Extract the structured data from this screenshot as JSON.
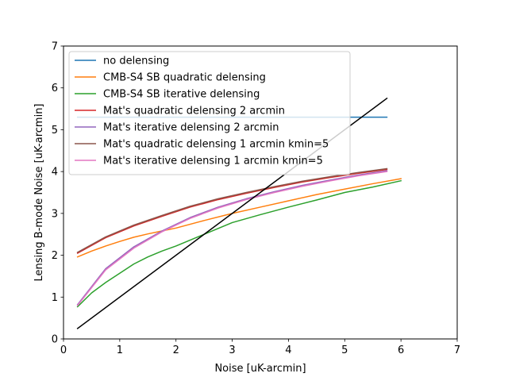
{
  "chart_data": {
    "type": "line",
    "title": "",
    "xlabel": "Noise [uK-arcmin]",
    "ylabel": "Lensing B-mode Noise [uK-arcmin]",
    "xlim": [
      0,
      7
    ],
    "ylim": [
      0,
      7
    ],
    "xticks": [
      0,
      1,
      2,
      3,
      4,
      5,
      6,
      7
    ],
    "yticks": [
      0,
      1,
      2,
      3,
      4,
      5,
      6,
      7
    ],
    "grid": false,
    "legend_position": "upper-left",
    "series": [
      {
        "name": "no delensing",
        "color": "#1f77b4",
        "x": [
          0.25,
          5.75
        ],
        "y": [
          5.3,
          5.3
        ]
      },
      {
        "name": "CMB-S4 SB quadratic delensing",
        "color": "#ff7f0e",
        "x": [
          0.25,
          0.5,
          0.75,
          1.0,
          1.25,
          1.5,
          1.75,
          2.0,
          2.5,
          3.0,
          3.5,
          4.0,
          4.5,
          5.0,
          5.5,
          6.0
        ],
        "y": [
          1.96,
          2.1,
          2.22,
          2.33,
          2.43,
          2.51,
          2.58,
          2.65,
          2.83,
          3.0,
          3.15,
          3.3,
          3.45,
          3.58,
          3.71,
          3.83
        ]
      },
      {
        "name": "CMB-S4 SB iterative delensing",
        "color": "#2ca02c",
        "x": [
          0.25,
          0.5,
          0.75,
          1.0,
          1.25,
          1.5,
          1.75,
          2.0,
          2.5,
          3.0,
          3.5,
          4.0,
          4.5,
          5.0,
          5.5,
          6.0
        ],
        "y": [
          0.77,
          1.1,
          1.35,
          1.57,
          1.79,
          1.96,
          2.1,
          2.22,
          2.5,
          2.78,
          2.97,
          3.15,
          3.32,
          3.5,
          3.63,
          3.78
        ]
      },
      {
        "name": "Mat's quadratic delensing 2 arcmin",
        "color": "#d62728",
        "x": [
          0.25,
          0.75,
          1.25,
          1.75,
          2.25,
          2.75,
          3.25,
          3.75,
          4.25,
          4.75,
          5.25,
          5.75
        ],
        "y": [
          2.05,
          2.42,
          2.7,
          2.93,
          3.15,
          3.33,
          3.48,
          3.62,
          3.75,
          3.86,
          3.96,
          4.05
        ]
      },
      {
        "name": "Mat's iterative delensing 2 arcmin",
        "color": "#9467bd",
        "x": [
          0.25,
          0.75,
          1.25,
          1.75,
          2.25,
          2.75,
          3.25,
          3.75,
          4.25,
          4.75,
          5.25,
          5.75
        ],
        "y": [
          0.82,
          1.68,
          2.2,
          2.58,
          2.9,
          3.15,
          3.35,
          3.52,
          3.67,
          3.8,
          3.92,
          4.02
        ]
      },
      {
        "name": "Mat's quadratic delensing 1 arcmin kmin=5",
        "color": "#8c564b",
        "x": [
          0.25,
          0.75,
          1.25,
          1.75,
          2.25,
          2.75,
          3.25,
          3.75,
          4.25,
          4.75,
          5.25,
          5.75
        ],
        "y": [
          2.07,
          2.44,
          2.72,
          2.95,
          3.17,
          3.35,
          3.5,
          3.64,
          3.77,
          3.88,
          3.98,
          4.07
        ]
      },
      {
        "name": "Mat's iterative delensing 1 arcmin kmin=5",
        "color": "#e377c2",
        "x": [
          0.25,
          0.75,
          1.25,
          1.75,
          2.25,
          2.75,
          3.25,
          3.75,
          4.25,
          4.75,
          5.25,
          5.75
        ],
        "y": [
          0.8,
          1.65,
          2.17,
          2.56,
          2.88,
          3.13,
          3.33,
          3.5,
          3.65,
          3.78,
          3.9,
          4.0
        ]
      },
      {
        "color": "#000000",
        "legend": false,
        "x": [
          0.25,
          5.75
        ],
        "y": [
          0.25,
          5.75
        ]
      }
    ]
  }
}
